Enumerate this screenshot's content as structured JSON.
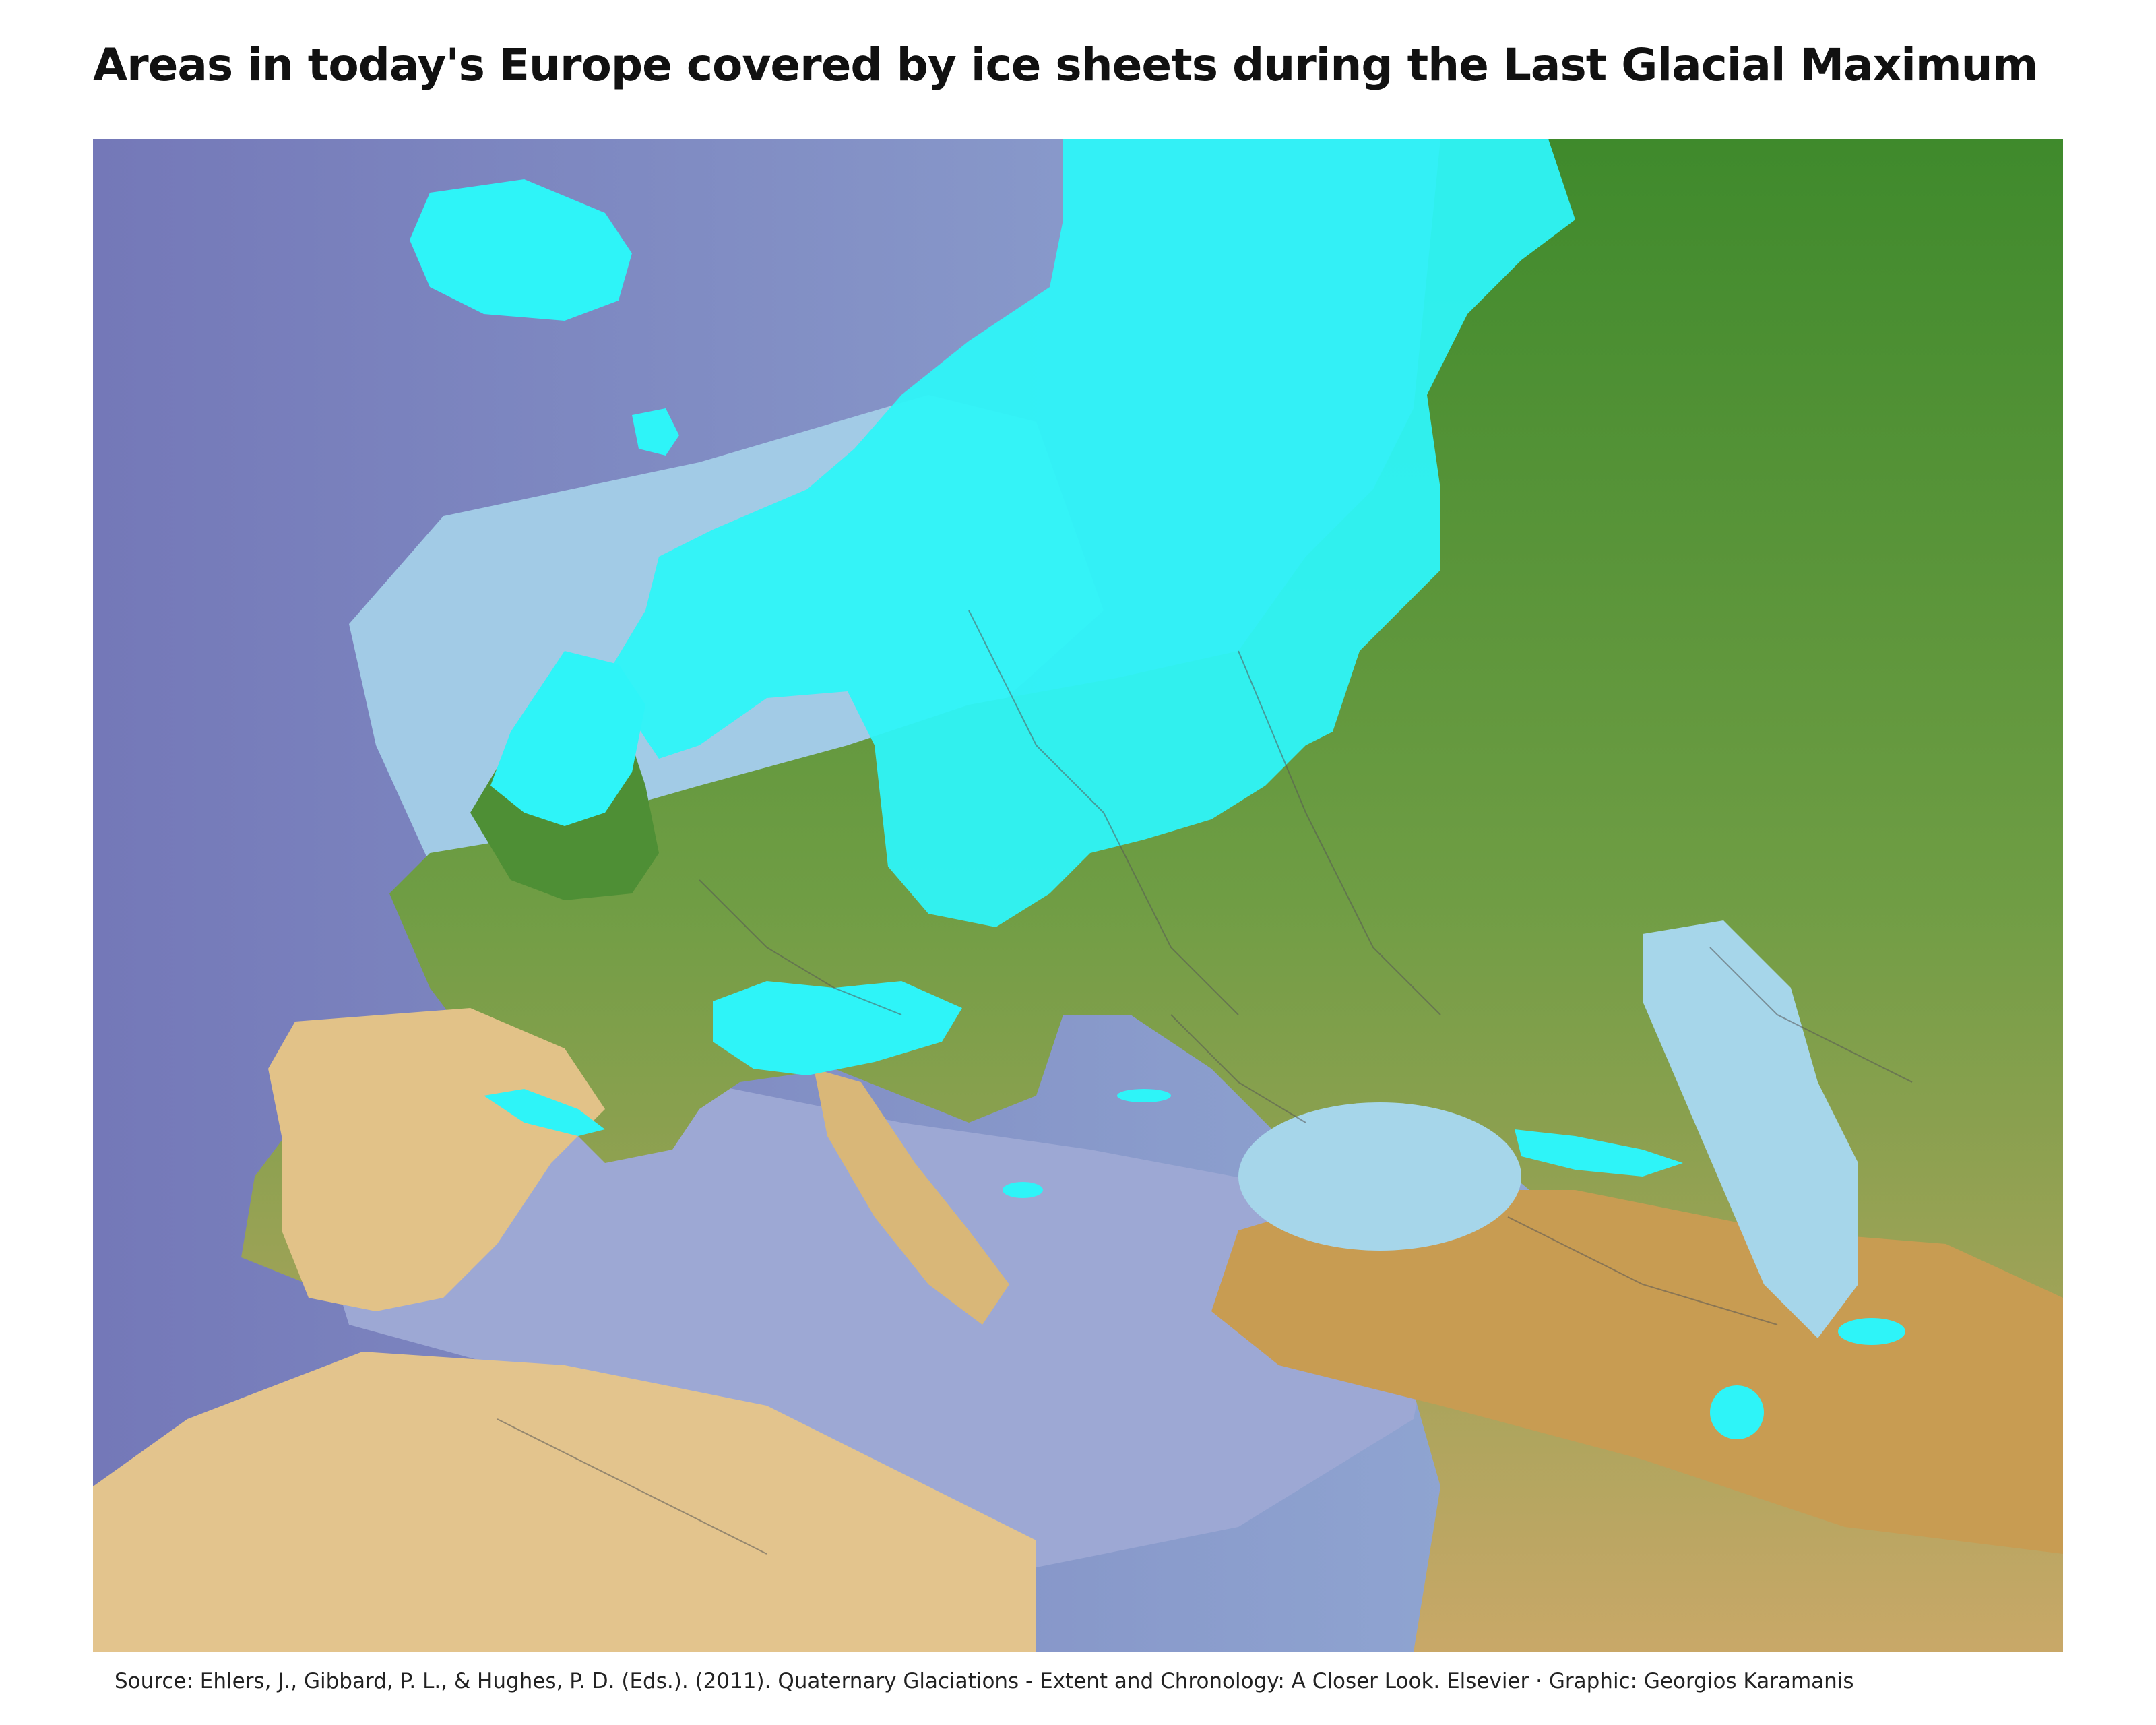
{
  "title": "Areas in today's Europe covered by ice sheets during the Last Glacial Maximum",
  "map": {
    "subject": "Europe",
    "palette": {
      "deep_ocean": "#7e86bf",
      "mid_ocean": "#8fa3cf",
      "shallow_sea": "#a6d6ea",
      "lowland_green": "#3f8a2c",
      "mid_green": "#6e9e45",
      "upland_tan": "#e2c288",
      "highland_brown": "#b98a3e",
      "ice_sheet": "#2ef4f8",
      "border_line": "#555555"
    }
  },
  "source": {
    "text": "Source: Ehlers, J., Gibbard, P. L., & Hughes, P. D. (Eds.). (2011). Quaternary Glaciations - Extent and Chronology: A Closer Look. Elsevier ·  Graphic: Georgios Karamanis"
  }
}
